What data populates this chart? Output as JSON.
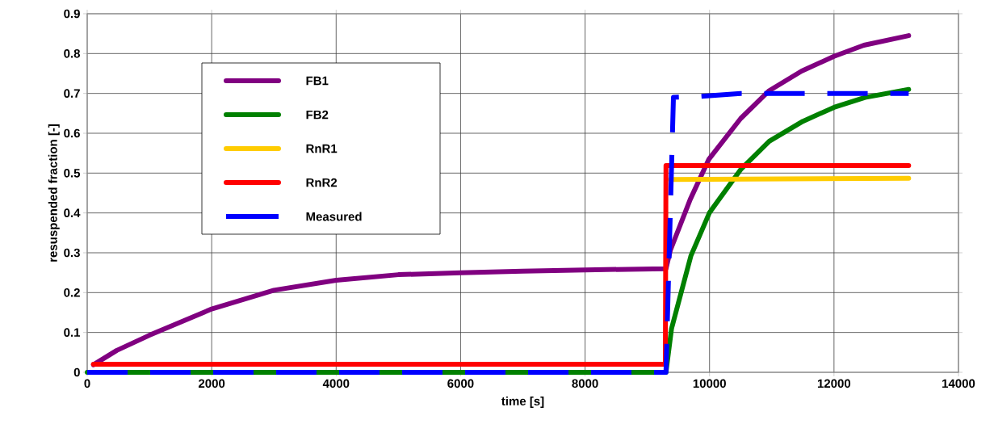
{
  "chart_data": {
    "type": "line",
    "xlabel": "time [s]",
    "ylabel": "resuspended fraction [-]",
    "xlim": [
      0,
      14000
    ],
    "ylim": [
      0,
      0.9
    ],
    "xticks": [
      0,
      2000,
      4000,
      6000,
      8000,
      10000,
      12000,
      14000
    ],
    "yticks": [
      0,
      0.1,
      0.2,
      0.3,
      0.4,
      0.5,
      0.6,
      0.7,
      0.8,
      0.9
    ],
    "grid": true,
    "legend": "top left",
    "series": [
      {
        "name": "FB1",
        "color": "#800080",
        "x": [
          100,
          475,
          1000,
          2000,
          3000,
          4000,
          5000,
          6000,
          7000,
          8000,
          9300,
          9370,
          9690,
          9990,
          10500,
          10960,
          11480,
          12000,
          12480,
          13200
        ],
        "values": [
          0.019,
          0.055,
          0.093,
          0.159,
          0.206,
          0.231,
          0.245,
          0.25,
          0.254,
          0.257,
          0.26,
          0.306,
          0.434,
          0.535,
          0.637,
          0.707,
          0.756,
          0.793,
          0.821,
          0.845
        ]
      },
      {
        "name": "FB2",
        "color": "#008000",
        "x": [
          0,
          9300,
          9390,
          9700,
          10000,
          10500,
          10960,
          11500,
          12000,
          12500,
          13200
        ],
        "values": [
          0,
          0,
          0.11,
          0.292,
          0.401,
          0.509,
          0.58,
          0.63,
          0.665,
          0.69,
          0.71
        ]
      },
      {
        "name": "RnR1",
        "color": "#ffcc00",
        "x": [
          9370,
          13200
        ],
        "values": [
          0.484,
          0.487
        ]
      },
      {
        "name": "RnR2",
        "color": "#ff0000",
        "x": [
          100,
          9290,
          9300,
          13200
        ],
        "values": [
          0.02,
          0.02,
          0.519,
          0.519
        ]
      },
      {
        "name": "Measured",
        "color": "#0000ff",
        "line_style": "dashed",
        "x": [
          0,
          9300,
          9420,
          9800,
          10500,
          13200
        ],
        "values": [
          0,
          0,
          0.69,
          0.692,
          0.7,
          0.7
        ]
      }
    ]
  }
}
